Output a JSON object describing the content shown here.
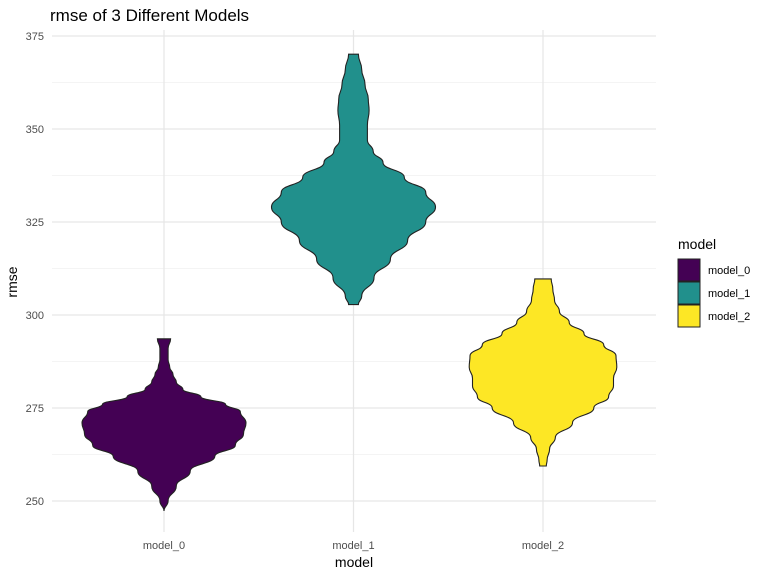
{
  "chart_data": {
    "type": "violin",
    "title": "rmse of 3 Different Models",
    "xlabel": "model",
    "ylabel": "rmse",
    "ylim": [
      245,
      376
    ],
    "yticks": [
      250,
      275,
      300,
      325,
      350,
      375
    ],
    "categories": [
      "model_0",
      "model_1",
      "model_2"
    ],
    "grid": true,
    "legend": {
      "title": "model",
      "position": "right",
      "entries": [
        "model_0",
        "model_1",
        "model_2"
      ]
    },
    "colors": {
      "model_0": "#440154",
      "model_1": "#21908C",
      "model_2": "#FDE725"
    },
    "series": [
      {
        "name": "model_0",
        "min": 247.3,
        "max": 293.6,
        "profile": [
          [
            247.3,
            0.0
          ],
          [
            250,
            0.05
          ],
          [
            254,
            0.15
          ],
          [
            258,
            0.32
          ],
          [
            262,
            0.62
          ],
          [
            265,
            0.87
          ],
          [
            268,
            0.97
          ],
          [
            271,
            1.0
          ],
          [
            274,
            0.93
          ],
          [
            276,
            0.75
          ],
          [
            278,
            0.45
          ],
          [
            280,
            0.23
          ],
          [
            282,
            0.15
          ],
          [
            284,
            0.11
          ],
          [
            286,
            0.07
          ],
          [
            288,
            0.05
          ],
          [
            291,
            0.05
          ],
          [
            293.6,
            0.08
          ]
        ]
      },
      {
        "name": "model_1",
        "min": 302.8,
        "max": 370.1,
        "profile": [
          [
            302.8,
            0.06
          ],
          [
            305,
            0.1
          ],
          [
            310,
            0.25
          ],
          [
            315,
            0.45
          ],
          [
            320,
            0.66
          ],
          [
            325,
            0.88
          ],
          [
            329,
            1.0
          ],
          [
            333,
            0.88
          ],
          [
            337,
            0.62
          ],
          [
            341,
            0.36
          ],
          [
            344,
            0.24
          ],
          [
            347,
            0.17
          ],
          [
            351,
            0.17
          ],
          [
            355,
            0.19
          ],
          [
            358,
            0.18
          ],
          [
            362,
            0.14
          ],
          [
            366,
            0.1
          ],
          [
            370.1,
            0.06
          ]
        ]
      },
      {
        "name": "model_2",
        "min": 259.4,
        "max": 309.7,
        "profile": [
          [
            259.4,
            0.04
          ],
          [
            261,
            0.05
          ],
          [
            264,
            0.08
          ],
          [
            267,
            0.15
          ],
          [
            271,
            0.36
          ],
          [
            275,
            0.62
          ],
          [
            278,
            0.8
          ],
          [
            281,
            0.86
          ],
          [
            283,
            0.86
          ],
          [
            286,
            0.9
          ],
          [
            289,
            0.89
          ],
          [
            292,
            0.74
          ],
          [
            295,
            0.5
          ],
          [
            298,
            0.32
          ],
          [
            301,
            0.2
          ],
          [
            304,
            0.14
          ],
          [
            307,
            0.12
          ],
          [
            309.7,
            0.1
          ]
        ]
      }
    ]
  }
}
